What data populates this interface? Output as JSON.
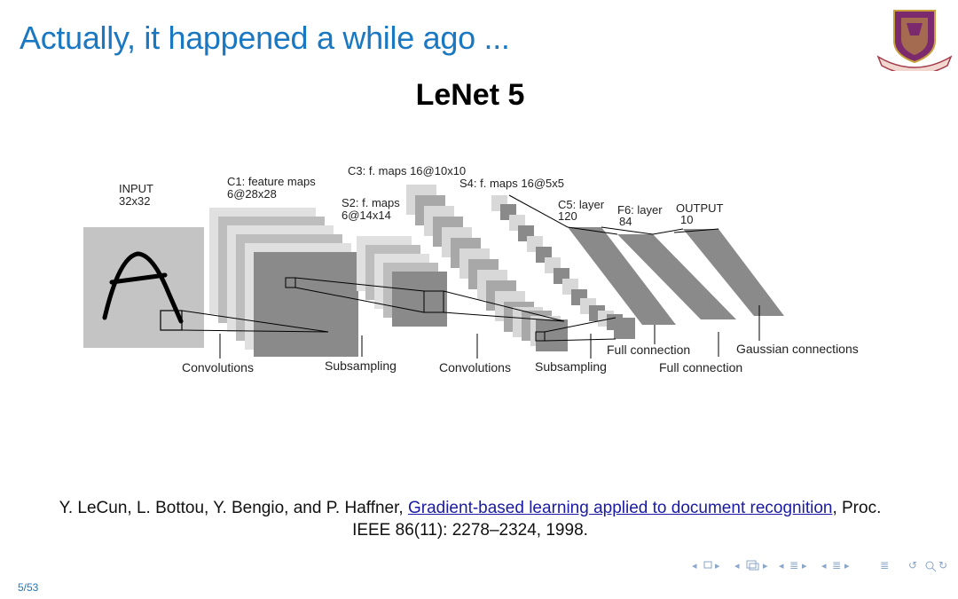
{
  "slide": {
    "title": "Actually, it happened a while ago ...",
    "subtitle": "LeNet 5",
    "page_number": "5/53",
    "accent_color": "#1a78c2",
    "logo_icon": "university-crest-icon"
  },
  "diagram": {
    "layers": [
      {
        "name": "INPUT",
        "detail": "32x32"
      },
      {
        "name": "C1: feature maps",
        "detail": "6@28x28"
      },
      {
        "name": "S2: f. maps",
        "detail": "6@14x14"
      },
      {
        "name": "C3: f. maps 16@10x10",
        "detail": ""
      },
      {
        "name": "S4: f. maps 16@5x5",
        "detail": ""
      },
      {
        "name": "C5: layer",
        "detail": "120"
      },
      {
        "name": "F6: layer",
        "detail": "84"
      },
      {
        "name": "OUTPUT",
        "detail": "10"
      }
    ],
    "operations": [
      "Convolutions",
      "Subsampling",
      "Convolutions",
      "Subsampling",
      "Full connection",
      "Full connection",
      "Gaussian connections"
    ]
  },
  "citation": {
    "authors": "Y. LeCun, L. Bottou, Y. Bengio, and P. Haffner, ",
    "link_text": "Gradient-based learning applied to document recognition",
    "rest": ", Proc. IEEE 86(11): 2278–2324, 1998."
  },
  "navigation": {
    "icons": [
      "nav-left-icon",
      "frame-icon",
      "nav-right-icon",
      "subsection-icon",
      "section-icon",
      "toc-icon",
      "search-icon"
    ]
  }
}
